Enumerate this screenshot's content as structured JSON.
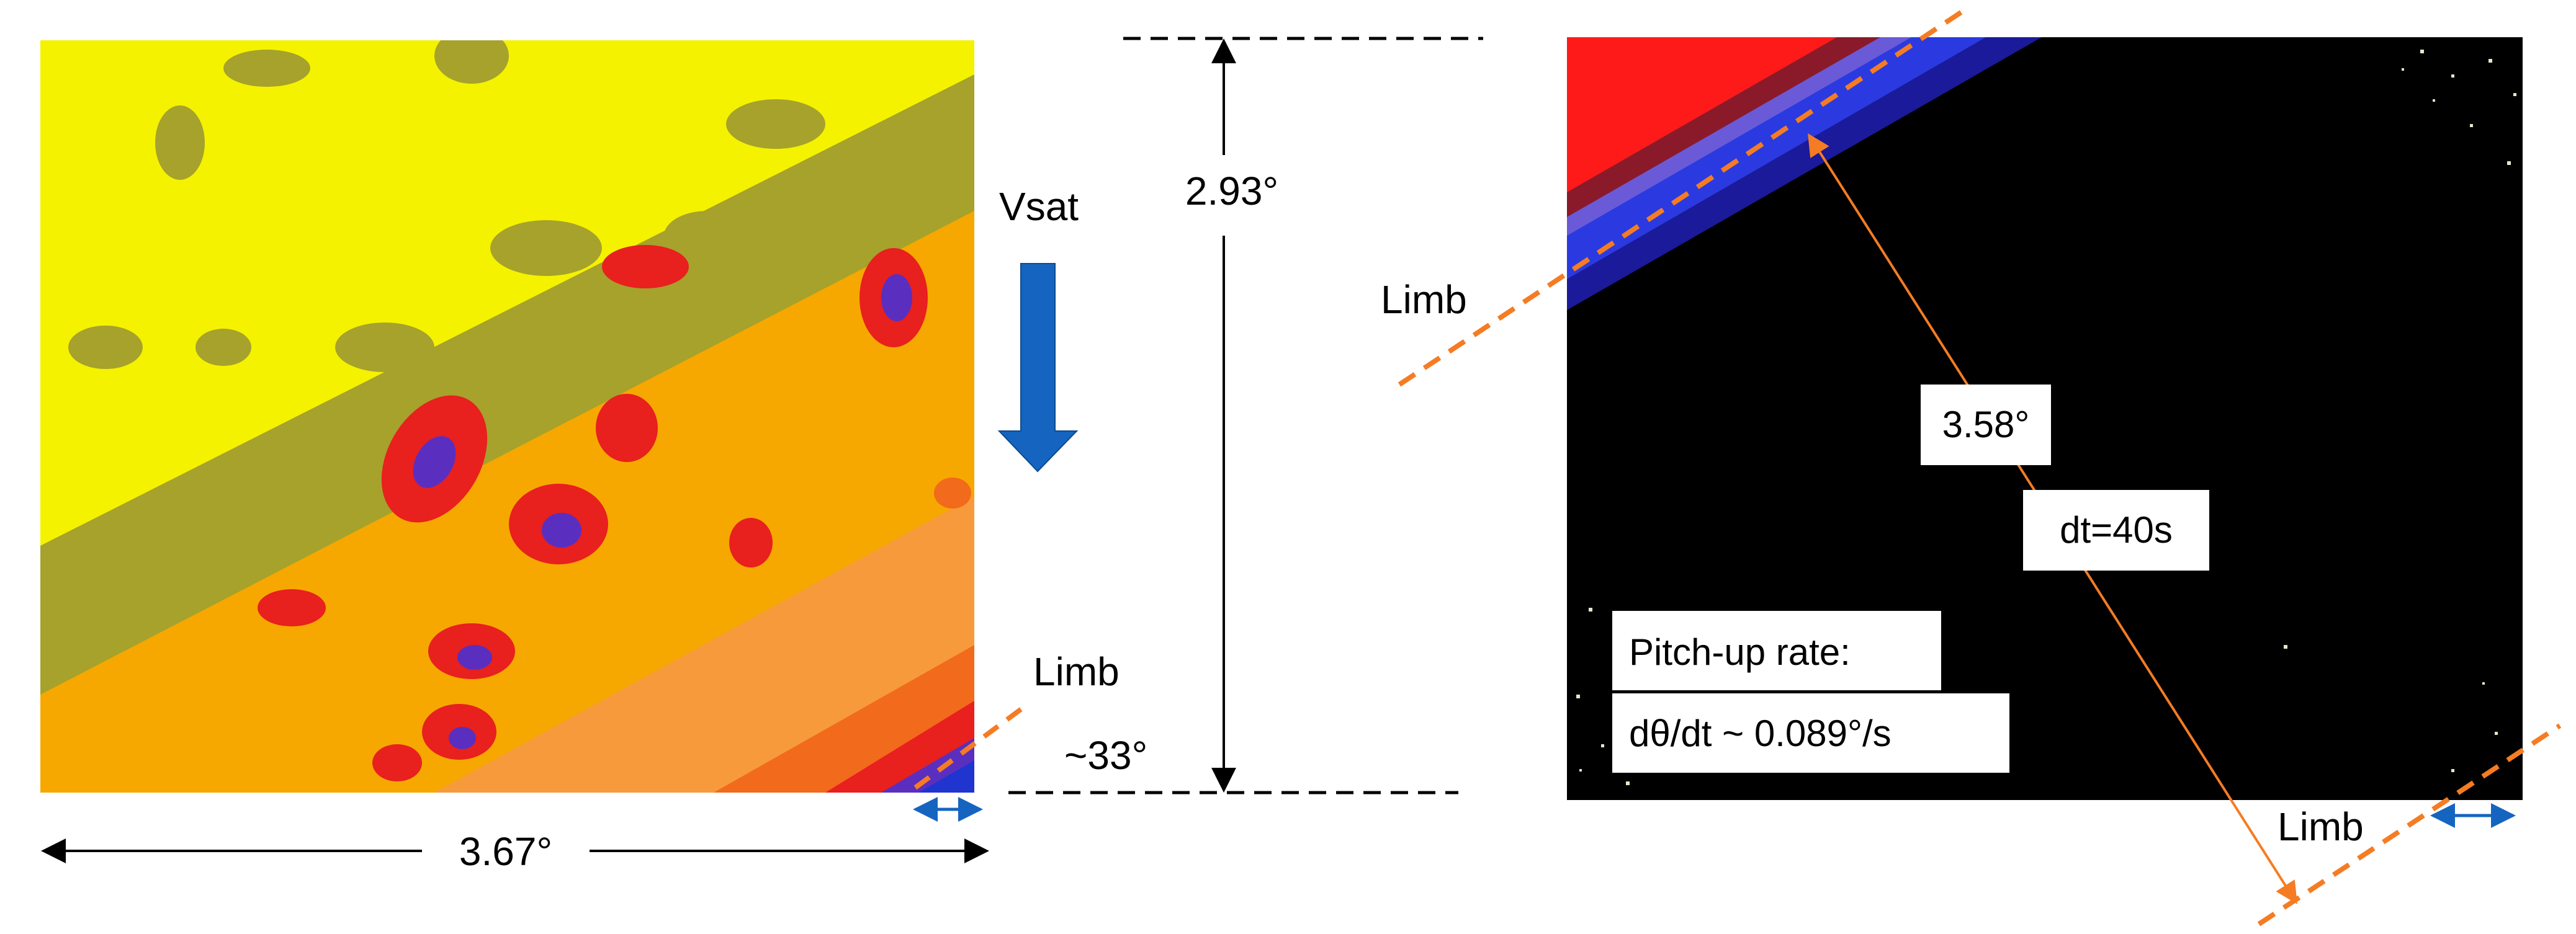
{
  "left_panel": {
    "velocity_label": "Vsat",
    "limb_label": "Limb",
    "angle_label": "~33°",
    "width_label": "3.67°",
    "height_label": "2.93°"
  },
  "right_panel": {
    "limb_upper_label": "Limb",
    "limb_lower_label": "Limb",
    "distance_label": "3.58°",
    "time_label": "dt=40s",
    "rate_title": "Pitch-up rate:",
    "rate_value": "dθ/dt ~ 0.089°/s"
  },
  "colors": {
    "yellow": "#f5f200",
    "olive": "#a6a22c",
    "orange": "#f6a800",
    "light_orange": "#f79a3c",
    "red": "#e8201e",
    "purple": "#5a2fc0",
    "blue_arrow": "#1565c0",
    "limb_dash": "#f57c23",
    "distance_line": "#f57c23",
    "background_dark": "#000000"
  }
}
